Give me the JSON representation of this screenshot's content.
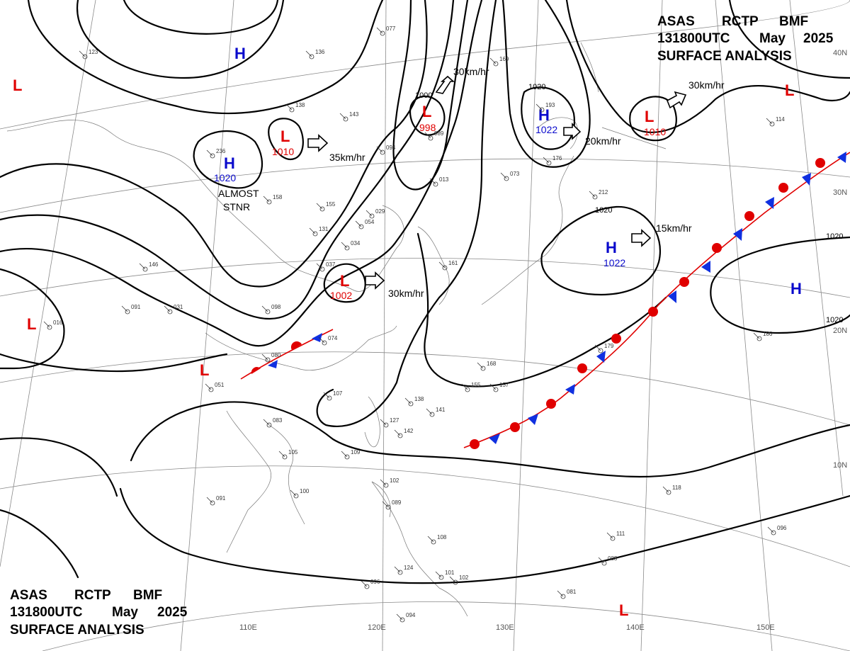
{
  "header_top": {
    "line1": [
      "ASAS",
      "RCTP",
      "BMF"
    ],
    "line2": [
      "131800UTC",
      "May",
      "2025"
    ],
    "line3": "SURFACE ANALYSIS"
  },
  "header_bottom": {
    "line1": [
      "ASAS",
      "RCTP",
      "BMF"
    ],
    "line2": [
      "131800UTC",
      "May",
      "2025"
    ],
    "line3": "SURFACE ANALYSIS"
  },
  "colors": {
    "low": "#e00000",
    "high": "#0a0acc",
    "warm_front": "#e00000",
    "cold_front": "#1030e0",
    "isobar": "#000000",
    "grid": "#888888"
  },
  "longitude_labels": [
    "110E",
    "120E",
    "130E",
    "140E",
    "150E"
  ],
  "latitude_labels": [
    "40N",
    "30N",
    "20N",
    "10N"
  ],
  "pressure_centers": [
    {
      "type": "H",
      "value": ""
    },
    {
      "type": "H",
      "value": "1020",
      "note1": "ALMOST",
      "note2": "STNR"
    },
    {
      "type": "L",
      "value": "1010"
    },
    {
      "type": "L",
      "value": "998",
      "isobar": "1000"
    },
    {
      "type": "H",
      "value": "1022",
      "isobar": "1020"
    },
    {
      "type": "L",
      "value": "1010"
    },
    {
      "type": "H",
      "value": "1022",
      "isobar": "1020"
    },
    {
      "type": "H",
      "value": ""
    },
    {
      "type": "L",
      "value": "1002"
    },
    {
      "type": "L",
      "value": ""
    },
    {
      "type": "L",
      "value": ""
    },
    {
      "type": "L",
      "value": ""
    },
    {
      "type": "L",
      "value": ""
    },
    {
      "type": "L",
      "value": ""
    }
  ],
  "motion_labels": [
    "30km/hr",
    "35km/hr",
    "30km/hr",
    "20km/hr",
    "30km/hr",
    "15km/hr"
  ],
  "isobar_labels": [
    "1020",
    "1020"
  ],
  "station_reports": [
    "077",
    "123",
    "136",
    "138",
    "143",
    "236",
    "158",
    "155",
    "131",
    "054",
    "034",
    "037",
    "098",
    "031",
    "091",
    "016",
    "146",
    "094",
    "989",
    "013",
    "029",
    "169",
    "193",
    "176",
    "212",
    "114",
    "186",
    "179",
    "168",
    "155",
    "157",
    "138",
    "141",
    "142",
    "107",
    "127",
    "083",
    "051",
    "105",
    "109",
    "100",
    "091",
    "102",
    "089",
    "108",
    "124",
    "101",
    "102",
    "096",
    "094",
    "081",
    "111",
    "088",
    "096",
    "118",
    "073",
    "161",
    "074",
    "080"
  ]
}
